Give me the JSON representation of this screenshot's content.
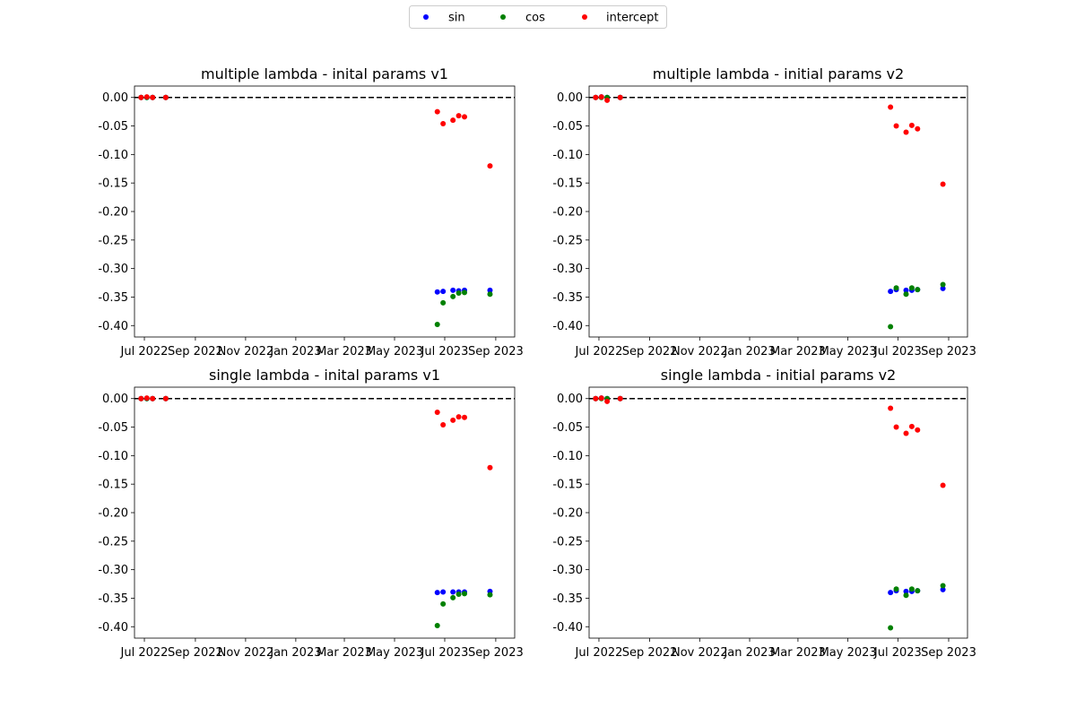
{
  "legend": {
    "placement": "top-center",
    "entries": [
      {
        "label": "sin",
        "color": "#0000ff"
      },
      {
        "label": "cos",
        "color": "#008000"
      },
      {
        "label": "intercept",
        "color": "#ff0000"
      }
    ]
  },
  "chart_data": [
    {
      "type": "scatter",
      "title": "multiple lambda - inital params v1",
      "xlabel": "",
      "ylabel": "",
      "xlim": [
        "2022-06-19",
        "2023-09-24"
      ],
      "ylim": [
        -0.42,
        0.02
      ],
      "xticks": [
        "2022-07-01",
        "2022-09-01",
        "2022-11-01",
        "2023-01-01",
        "2023-03-01",
        "2023-05-01",
        "2023-07-01",
        "2023-09-01"
      ],
      "xtick_labels": [
        "Jul 2022",
        "Sep 2022",
        "Nov 2022",
        "Jan 2023",
        "Mar 2023",
        "May 2023",
        "Jul 2023",
        "Sep 2023"
      ],
      "yticks": [
        0.0,
        -0.05,
        -0.1,
        -0.15,
        -0.2,
        -0.25,
        -0.3,
        -0.35,
        -0.4
      ],
      "ytick_labels": [
        "0.00",
        "-0.05",
        "-0.10",
        "-0.15",
        "-0.20",
        "-0.25",
        "-0.30",
        "-0.35",
        "-0.40"
      ],
      "hline": {
        "y": 0,
        "style": "dashed",
        "color": "#000000"
      },
      "series": [
        {
          "name": "sin",
          "color": "#0000ff",
          "x": [
            "2022-06-27",
            "2022-07-04",
            "2022-07-11",
            "2022-07-27",
            "2023-06-22",
            "2023-06-29",
            "2023-07-11",
            "2023-07-18",
            "2023-07-25",
            "2023-08-25"
          ],
          "y": [
            0,
            0,
            0,
            0,
            -0.341,
            -0.34,
            -0.338,
            -0.339,
            -0.338,
            -0.338
          ]
        },
        {
          "name": "cos",
          "color": "#008000",
          "x": [
            "2022-06-27",
            "2022-07-04",
            "2022-07-11",
            "2022-07-27",
            "2023-06-22",
            "2023-06-29",
            "2023-07-11",
            "2023-07-18",
            "2023-07-25",
            "2023-08-25"
          ],
          "y": [
            0,
            0,
            0,
            0,
            -0.398,
            -0.36,
            -0.349,
            -0.343,
            -0.342,
            -0.345
          ]
        },
        {
          "name": "intercept",
          "color": "#ff0000",
          "x": [
            "2022-06-27",
            "2022-07-04",
            "2022-07-11",
            "2022-07-27",
            "2023-06-22",
            "2023-06-29",
            "2023-07-11",
            "2023-07-18",
            "2023-07-25",
            "2023-08-25"
          ],
          "y": [
            0,
            0.001,
            0,
            0,
            -0.025,
            -0.046,
            -0.04,
            -0.032,
            -0.034,
            -0.12
          ]
        }
      ]
    },
    {
      "type": "scatter",
      "title": "multiple lambda - initial params v2",
      "xlabel": "",
      "ylabel": "",
      "xlim": [
        "2022-06-19",
        "2023-09-24"
      ],
      "ylim": [
        -0.42,
        0.02
      ],
      "xticks": [
        "2022-07-01",
        "2022-09-01",
        "2022-11-01",
        "2023-01-01",
        "2023-03-01",
        "2023-05-01",
        "2023-07-01",
        "2023-09-01"
      ],
      "xtick_labels": [
        "Jul 2022",
        "Sep 2022",
        "Nov 2022",
        "Jan 2023",
        "Mar 2023",
        "May 2023",
        "Jul 2023",
        "Sep 2023"
      ],
      "yticks": [
        0.0,
        -0.05,
        -0.1,
        -0.15,
        -0.2,
        -0.25,
        -0.3,
        -0.35,
        -0.4
      ],
      "ytick_labels": [
        "0.00",
        "-0.05",
        "-0.10",
        "-0.15",
        "-0.20",
        "-0.25",
        "-0.30",
        "-0.35",
        "-0.40"
      ],
      "hline": {
        "y": 0,
        "style": "dashed",
        "color": "#000000"
      },
      "series": [
        {
          "name": "sin",
          "color": "#0000ff",
          "x": [
            "2022-06-27",
            "2022-07-04",
            "2022-07-11",
            "2022-07-27",
            "2023-06-22",
            "2023-06-29",
            "2023-07-11",
            "2023-07-18",
            "2023-07-25",
            "2023-08-25"
          ],
          "y": [
            0,
            0.001,
            0,
            0,
            -0.34,
            -0.337,
            -0.338,
            -0.338,
            -0.337,
            -0.335
          ]
        },
        {
          "name": "cos",
          "color": "#008000",
          "x": [
            "2022-06-27",
            "2022-07-04",
            "2022-07-11",
            "2022-07-27",
            "2023-06-22",
            "2023-06-29",
            "2023-07-11",
            "2023-07-18",
            "2023-07-25",
            "2023-08-25"
          ],
          "y": [
            0,
            0,
            0,
            0,
            -0.402,
            -0.334,
            -0.345,
            -0.334,
            -0.337,
            -0.328
          ]
        },
        {
          "name": "intercept",
          "color": "#ff0000",
          "x": [
            "2022-06-27",
            "2022-07-04",
            "2022-07-11",
            "2022-07-27",
            "2023-06-22",
            "2023-06-29",
            "2023-07-11",
            "2023-07-18",
            "2023-07-25",
            "2023-08-25"
          ],
          "y": [
            0,
            0.001,
            -0.005,
            0,
            -0.017,
            -0.05,
            -0.061,
            -0.049,
            -0.055,
            -0.152
          ]
        }
      ]
    },
    {
      "type": "scatter",
      "title": "single lambda - inital params v1",
      "xlabel": "",
      "ylabel": "",
      "xlim": [
        "2022-06-19",
        "2023-09-24"
      ],
      "ylim": [
        -0.42,
        0.02
      ],
      "xticks": [
        "2022-07-01",
        "2022-09-01",
        "2022-11-01",
        "2023-01-01",
        "2023-03-01",
        "2023-05-01",
        "2023-07-01",
        "2023-09-01"
      ],
      "xtick_labels": [
        "Jul 2022",
        "Sep 2022",
        "Nov 2022",
        "Jan 2023",
        "Mar 2023",
        "May 2023",
        "Jul 2023",
        "Sep 2023"
      ],
      "yticks": [
        0.0,
        -0.05,
        -0.1,
        -0.15,
        -0.2,
        -0.25,
        -0.3,
        -0.35,
        -0.4
      ],
      "ytick_labels": [
        "0.00",
        "-0.05",
        "-0.10",
        "-0.15",
        "-0.20",
        "-0.25",
        "-0.30",
        "-0.35",
        "-0.40"
      ],
      "hline": {
        "y": 0,
        "style": "dashed",
        "color": "#000000"
      },
      "series": [
        {
          "name": "sin",
          "color": "#0000ff",
          "x": [
            "2022-06-27",
            "2022-07-04",
            "2022-07-11",
            "2022-07-27",
            "2023-06-22",
            "2023-06-29",
            "2023-07-11",
            "2023-07-18",
            "2023-07-25",
            "2023-08-25"
          ],
          "y": [
            0,
            0,
            0,
            0,
            -0.34,
            -0.339,
            -0.339,
            -0.339,
            -0.339,
            -0.338
          ]
        },
        {
          "name": "cos",
          "color": "#008000",
          "x": [
            "2022-06-27",
            "2022-07-04",
            "2022-07-11",
            "2022-07-27",
            "2023-06-22",
            "2023-06-29",
            "2023-07-11",
            "2023-07-18",
            "2023-07-25",
            "2023-08-25"
          ],
          "y": [
            0,
            0,
            0,
            0,
            -0.398,
            -0.36,
            -0.349,
            -0.343,
            -0.342,
            -0.344
          ]
        },
        {
          "name": "intercept",
          "color": "#ff0000",
          "x": [
            "2022-06-27",
            "2022-07-04",
            "2022-07-11",
            "2022-07-27",
            "2023-06-22",
            "2023-06-29",
            "2023-07-11",
            "2023-07-18",
            "2023-07-25",
            "2023-08-25"
          ],
          "y": [
            0,
            0.001,
            0,
            0,
            -0.024,
            -0.046,
            -0.038,
            -0.032,
            -0.033,
            -0.121
          ]
        }
      ]
    },
    {
      "type": "scatter",
      "title": "single lambda - initial params v2",
      "xlabel": "",
      "ylabel": "",
      "xlim": [
        "2022-06-19",
        "2023-09-24"
      ],
      "ylim": [
        -0.42,
        0.02
      ],
      "xticks": [
        "2022-07-01",
        "2022-09-01",
        "2022-11-01",
        "2023-01-01",
        "2023-03-01",
        "2023-05-01",
        "2023-07-01",
        "2023-09-01"
      ],
      "xtick_labels": [
        "Jul 2022",
        "Sep 2022",
        "Nov 2022",
        "Jan 2023",
        "Mar 2023",
        "May 2023",
        "Jul 2023",
        "Sep 2023"
      ],
      "yticks": [
        0.0,
        -0.05,
        -0.1,
        -0.15,
        -0.2,
        -0.25,
        -0.3,
        -0.35,
        -0.4
      ],
      "ytick_labels": [
        "0.00",
        "-0.05",
        "-0.10",
        "-0.15",
        "-0.20",
        "-0.25",
        "-0.30",
        "-0.35",
        "-0.40"
      ],
      "hline": {
        "y": 0,
        "style": "dashed",
        "color": "#000000"
      },
      "series": [
        {
          "name": "sin",
          "color": "#0000ff",
          "x": [
            "2022-06-27",
            "2022-07-04",
            "2022-07-11",
            "2022-07-27",
            "2023-06-22",
            "2023-06-29",
            "2023-07-11",
            "2023-07-18",
            "2023-07-25",
            "2023-08-25"
          ],
          "y": [
            0,
            0.001,
            0,
            0,
            -0.34,
            -0.337,
            -0.338,
            -0.338,
            -0.337,
            -0.335
          ]
        },
        {
          "name": "cos",
          "color": "#008000",
          "x": [
            "2022-06-27",
            "2022-07-04",
            "2022-07-11",
            "2022-07-27",
            "2023-06-22",
            "2023-06-29",
            "2023-07-11",
            "2023-07-18",
            "2023-07-25",
            "2023-08-25"
          ],
          "y": [
            0,
            0,
            0,
            0,
            -0.402,
            -0.334,
            -0.345,
            -0.334,
            -0.337,
            -0.328
          ]
        },
        {
          "name": "intercept",
          "color": "#ff0000",
          "x": [
            "2022-06-27",
            "2022-07-04",
            "2022-07-11",
            "2022-07-27",
            "2023-06-22",
            "2023-06-29",
            "2023-07-11",
            "2023-07-18",
            "2023-07-25",
            "2023-08-25"
          ],
          "y": [
            0,
            0.001,
            -0.005,
            0,
            -0.017,
            -0.05,
            -0.061,
            -0.049,
            -0.055,
            -0.152
          ]
        }
      ]
    }
  ]
}
